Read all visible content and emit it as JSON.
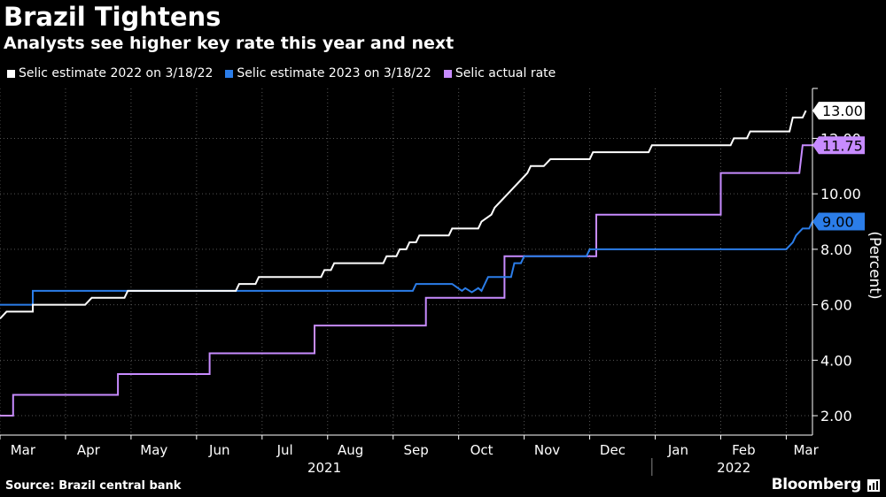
{
  "title": "Brazil Tightens",
  "subtitle": "Analysts see higher key rate this year and next",
  "source": "Source: Brazil central bank",
  "brand": "Bloomberg",
  "chart_data": {
    "type": "line",
    "ylabel": "(Percent)",
    "ylim": [
      1.3,
      13.8
    ],
    "yticks": [
      2.0,
      4.0,
      6.0,
      8.0,
      10.0,
      12.0
    ],
    "ytick_labels": [
      "2.00",
      "4.00",
      "6.00",
      "8.00",
      "10.00",
      "12.00"
    ],
    "y_axis_side": "right",
    "xlim": [
      0,
      12.4
    ],
    "x_month_labels": [
      {
        "label": "Mar",
        "x": 0.35
      },
      {
        "label": "Apr",
        "x": 1.35
      },
      {
        "label": "May",
        "x": 2.35
      },
      {
        "label": "Jun",
        "x": 3.35
      },
      {
        "label": "Jul",
        "x": 4.35
      },
      {
        "label": "Aug",
        "x": 5.35
      },
      {
        "label": "Sep",
        "x": 6.35
      },
      {
        "label": "Oct",
        "x": 7.35
      },
      {
        "label": "Nov",
        "x": 8.35
      },
      {
        "label": "Dec",
        "x": 9.35
      },
      {
        "label": "Jan",
        "x": 10.35
      },
      {
        "label": "Feb",
        "x": 11.35
      },
      {
        "label": "Mar",
        "x": 12.3
      }
    ],
    "x_year_labels": [
      {
        "label": "2021",
        "x": 4.95
      },
      {
        "label": "2022",
        "x": 11.2
      }
    ],
    "year_divider_x": 9.95,
    "grid": "vertical-dotted",
    "legend_position": "top-left",
    "series": [
      {
        "name": "Selic estimate 2022 on 3/18/22",
        "color": "#ffffff",
        "end_label": "13.00",
        "points": [
          [
            0,
            5.5
          ],
          [
            0.1,
            5.75
          ],
          [
            0.5,
            5.75
          ],
          [
            0.5,
            6.0
          ],
          [
            1.3,
            6.0
          ],
          [
            1.4,
            6.25
          ],
          [
            1.9,
            6.25
          ],
          [
            1.95,
            6.5
          ],
          [
            3.6,
            6.5
          ],
          [
            3.65,
            6.75
          ],
          [
            3.9,
            6.75
          ],
          [
            3.95,
            7.0
          ],
          [
            4.9,
            7.0
          ],
          [
            4.95,
            7.25
          ],
          [
            5.05,
            7.25
          ],
          [
            5.1,
            7.5
          ],
          [
            5.85,
            7.5
          ],
          [
            5.9,
            7.75
          ],
          [
            6.05,
            7.75
          ],
          [
            6.1,
            8.0
          ],
          [
            6.2,
            8.0
          ],
          [
            6.25,
            8.25
          ],
          [
            6.35,
            8.25
          ],
          [
            6.4,
            8.5
          ],
          [
            6.85,
            8.5
          ],
          [
            6.9,
            8.75
          ],
          [
            7.3,
            8.75
          ],
          [
            7.35,
            9.0
          ],
          [
            7.5,
            9.25
          ],
          [
            7.55,
            9.5
          ],
          [
            7.65,
            9.75
          ],
          [
            7.75,
            10.0
          ],
          [
            7.85,
            10.25
          ],
          [
            7.95,
            10.5
          ],
          [
            8.05,
            10.75
          ],
          [
            8.1,
            11.0
          ],
          [
            8.3,
            11.0
          ],
          [
            8.4,
            11.25
          ],
          [
            9.0,
            11.25
          ],
          [
            9.05,
            11.5
          ],
          [
            9.9,
            11.5
          ],
          [
            9.95,
            11.75
          ],
          [
            11.15,
            11.75
          ],
          [
            11.2,
            12.0
          ],
          [
            11.4,
            12.0
          ],
          [
            11.45,
            12.25
          ],
          [
            12.05,
            12.25
          ],
          [
            12.1,
            12.75
          ],
          [
            12.25,
            12.75
          ],
          [
            12.3,
            13.0
          ]
        ]
      },
      {
        "name": "Selic estimate 2023 on 3/18/22",
        "color": "#2b7de9",
        "end_label": "9.00",
        "points": [
          [
            0,
            6.0
          ],
          [
            0.5,
            6.0
          ],
          [
            0.5,
            6.5
          ],
          [
            6.3,
            6.5
          ],
          [
            6.35,
            6.75
          ],
          [
            6.9,
            6.75
          ],
          [
            7.05,
            6.5
          ],
          [
            7.1,
            6.6
          ],
          [
            7.2,
            6.45
          ],
          [
            7.3,
            6.6
          ],
          [
            7.35,
            6.5
          ],
          [
            7.45,
            7.0
          ],
          [
            7.8,
            7.0
          ],
          [
            7.85,
            7.5
          ],
          [
            7.95,
            7.5
          ],
          [
            8.0,
            7.75
          ],
          [
            8.95,
            7.75
          ],
          [
            9.0,
            8.0
          ],
          [
            12.0,
            8.0
          ],
          [
            12.1,
            8.25
          ],
          [
            12.15,
            8.5
          ],
          [
            12.25,
            8.75
          ],
          [
            12.35,
            8.75
          ],
          [
            12.4,
            9.0
          ]
        ]
      },
      {
        "name": "Selic actual rate",
        "color": "#c78bff",
        "end_label": "11.75",
        "points": [
          [
            0,
            2.0
          ],
          [
            0.2,
            2.0
          ],
          [
            0.2,
            2.75
          ],
          [
            1.8,
            2.75
          ],
          [
            1.8,
            3.5
          ],
          [
            3.2,
            3.5
          ],
          [
            3.2,
            4.25
          ],
          [
            4.8,
            4.25
          ],
          [
            4.8,
            5.25
          ],
          [
            6.5,
            5.25
          ],
          [
            6.5,
            6.25
          ],
          [
            7.7,
            6.25
          ],
          [
            7.7,
            7.75
          ],
          [
            9.1,
            7.75
          ],
          [
            9.1,
            9.25
          ],
          [
            11.0,
            9.25
          ],
          [
            11.0,
            10.75
          ],
          [
            12.2,
            10.75
          ],
          [
            12.25,
            11.75
          ],
          [
            12.4,
            11.75
          ]
        ]
      }
    ]
  }
}
